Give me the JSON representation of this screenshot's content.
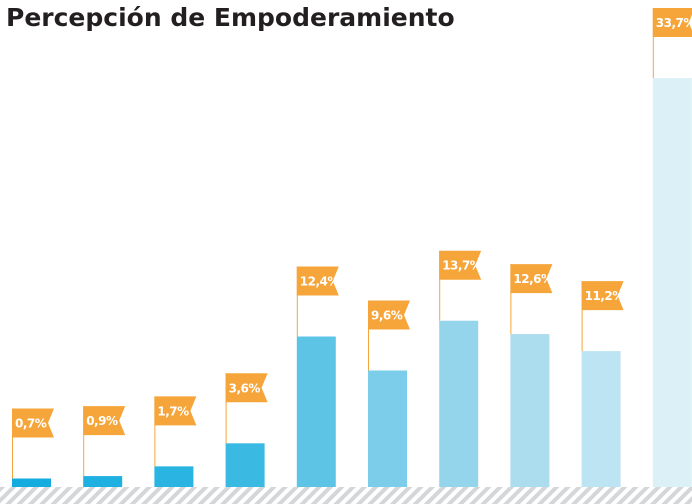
{
  "chart_data": {
    "type": "bar",
    "title": "Percepción de Empoderamiento",
    "categories": [
      null,
      null,
      null,
      null,
      null,
      null,
      null,
      null,
      null,
      null
    ],
    "values": [
      0.7,
      0.9,
      1.7,
      3.6,
      12.4,
      9.6,
      13.7,
      12.6,
      11.2,
      33.7
    ],
    "value_labels": [
      "0,7%",
      "0,9%",
      "1,7%",
      "3,6%",
      "12,4%",
      "9,6%",
      "13,7%",
      "12,6%",
      "11,2%",
      "33,7%"
    ],
    "colors": [
      "#14abdf",
      "#1eb0e1",
      "#2ab4e2",
      "#3ab9e3",
      "#5ec4e6",
      "#7ccde9",
      "#94d5ec",
      "#acddef",
      "#bde4f2",
      "#dcf0f8"
    ],
    "label_color": "#f6a53a"
  }
}
